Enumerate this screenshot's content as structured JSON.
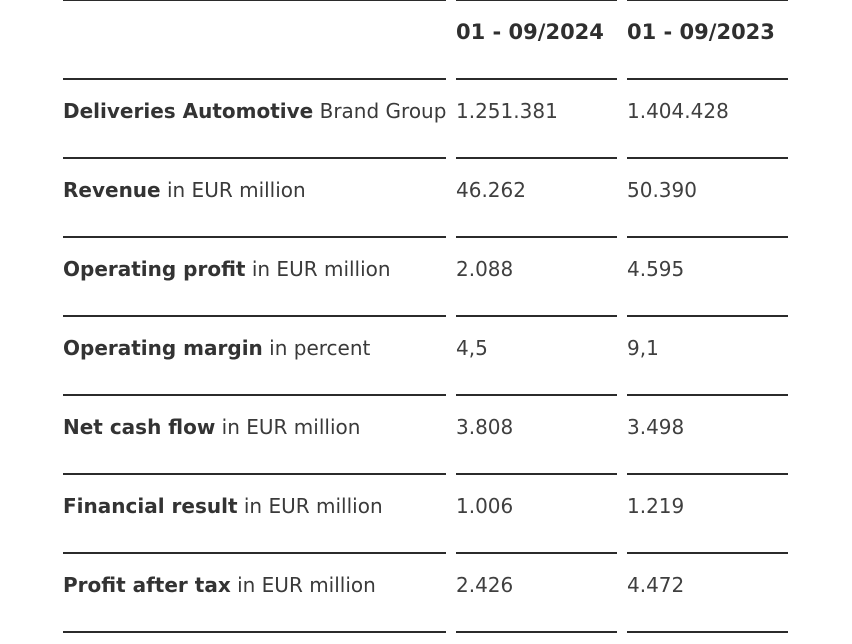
{
  "header": {
    "col1": "01 - 09/2024",
    "col2": "01 - 09/2023"
  },
  "rows": [
    {
      "label_bold": "Deliveries Automotive",
      "label_rest": " Brand Group",
      "v2024": "1.251.381",
      "v2023": "1.404.428"
    },
    {
      "label_bold": "Revenue",
      "label_rest": " in EUR million",
      "v2024": "46.262",
      "v2023": "50.390"
    },
    {
      "label_bold": "Operating profit",
      "label_rest": " in EUR million",
      "v2024": "2.088",
      "v2023": "4.595"
    },
    {
      "label_bold": "Operating margin",
      "label_rest": " in percent",
      "v2024": "4,5",
      "v2023": "9,1"
    },
    {
      "label_bold": "Net cash flow",
      "label_rest": " in EUR million",
      "v2024": "3.808",
      "v2023": "3.498"
    },
    {
      "label_bold": "Financial result",
      "label_rest": " in EUR million",
      "v2024": "1.006",
      "v2023": "1.219"
    },
    {
      "label_bold": "Profit after tax",
      "label_rest": " in EUR million",
      "v2024": "2.426",
      "v2023": "4.472"
    }
  ]
}
